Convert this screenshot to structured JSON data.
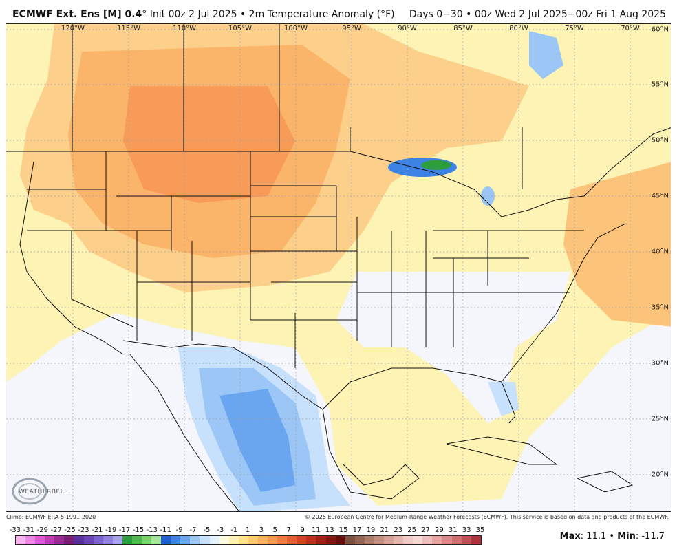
{
  "header": {
    "model": "ECMWF Ext. Ens [M] 0.4",
    "init": "° Init 00z 2 Jul 2025 • 2m Temperature Anomaly (°F)",
    "period": "Days 0−30 • 00z Wed 2 Jul 2025−00z Fri 1 Aug 2025"
  },
  "map": {
    "lon_labels": [
      "120°W",
      "115°W",
      "110°W",
      "105°W",
      "100°W",
      "95°W",
      "90°W",
      "85°W",
      "80°W",
      "75°W",
      "70°W"
    ],
    "lat_labels": [
      "60°N",
      "55°N",
      "50°N",
      "45°N",
      "40°N",
      "35°N",
      "30°N",
      "25°N",
      "20°N"
    ],
    "logo_text": "WEATHERBELL"
  },
  "footer": {
    "climo": "Climo: ECMWF ERA-5 1991-2020",
    "copyright": "© 2025 European Centre for Medium-Range Weather Forecasts (ECMWF). This service is based on data and products of the ECMWF.",
    "max_label": "Max",
    "max_value": ": 11.1",
    "sep": " • ",
    "min_label": "Min",
    "min_value": ": -11.7"
  },
  "colorbar": {
    "ticks": [
      "-33",
      "-31",
      "-29",
      "-27",
      "-25",
      "-23",
      "-21",
      "-19",
      "-17",
      "-15",
      "-13",
      "-11",
      "-9",
      "-7",
      "-5",
      "-3",
      "-1",
      "1",
      "3",
      "5",
      "7",
      "9",
      "11",
      "13",
      "15",
      "17",
      "19",
      "21",
      "23",
      "25",
      "27",
      "29",
      "31",
      "33",
      "35"
    ],
    "colors": [
      "#f6b3f0",
      "#ee86e6",
      "#df57d4",
      "#c23ab6",
      "#9e2b95",
      "#7a1e74",
      "#5a2f9e",
      "#6a45bb",
      "#7d62d2",
      "#9280e0",
      "#a9a2ec",
      "#2e9d3f",
      "#4db94f",
      "#75d36a",
      "#a6e69a",
      "#1f5fd1",
      "#3d83e6",
      "#6aa6f0",
      "#9cc6f6",
      "#c7e0fb",
      "#e6f2fd",
      "#fdfbe0",
      "#fdf2b3",
      "#fde38a",
      "#fdcc6a",
      "#fbb25a",
      "#f8964b",
      "#f27a3c",
      "#e85d30",
      "#d94325",
      "#c22e1d",
      "#a51e18",
      "#861412",
      "#690d0d",
      "#7e5243",
      "#956655",
      "#ab7b6a",
      "#c18e80",
      "#d4a297",
      "#e2b6ad",
      "#efc9c3",
      "#f6d9d5",
      "#eec0bd",
      "#e5a3a2",
      "#dc8789",
      "#d06b70",
      "#c24e58",
      "#b03440"
    ]
  }
}
